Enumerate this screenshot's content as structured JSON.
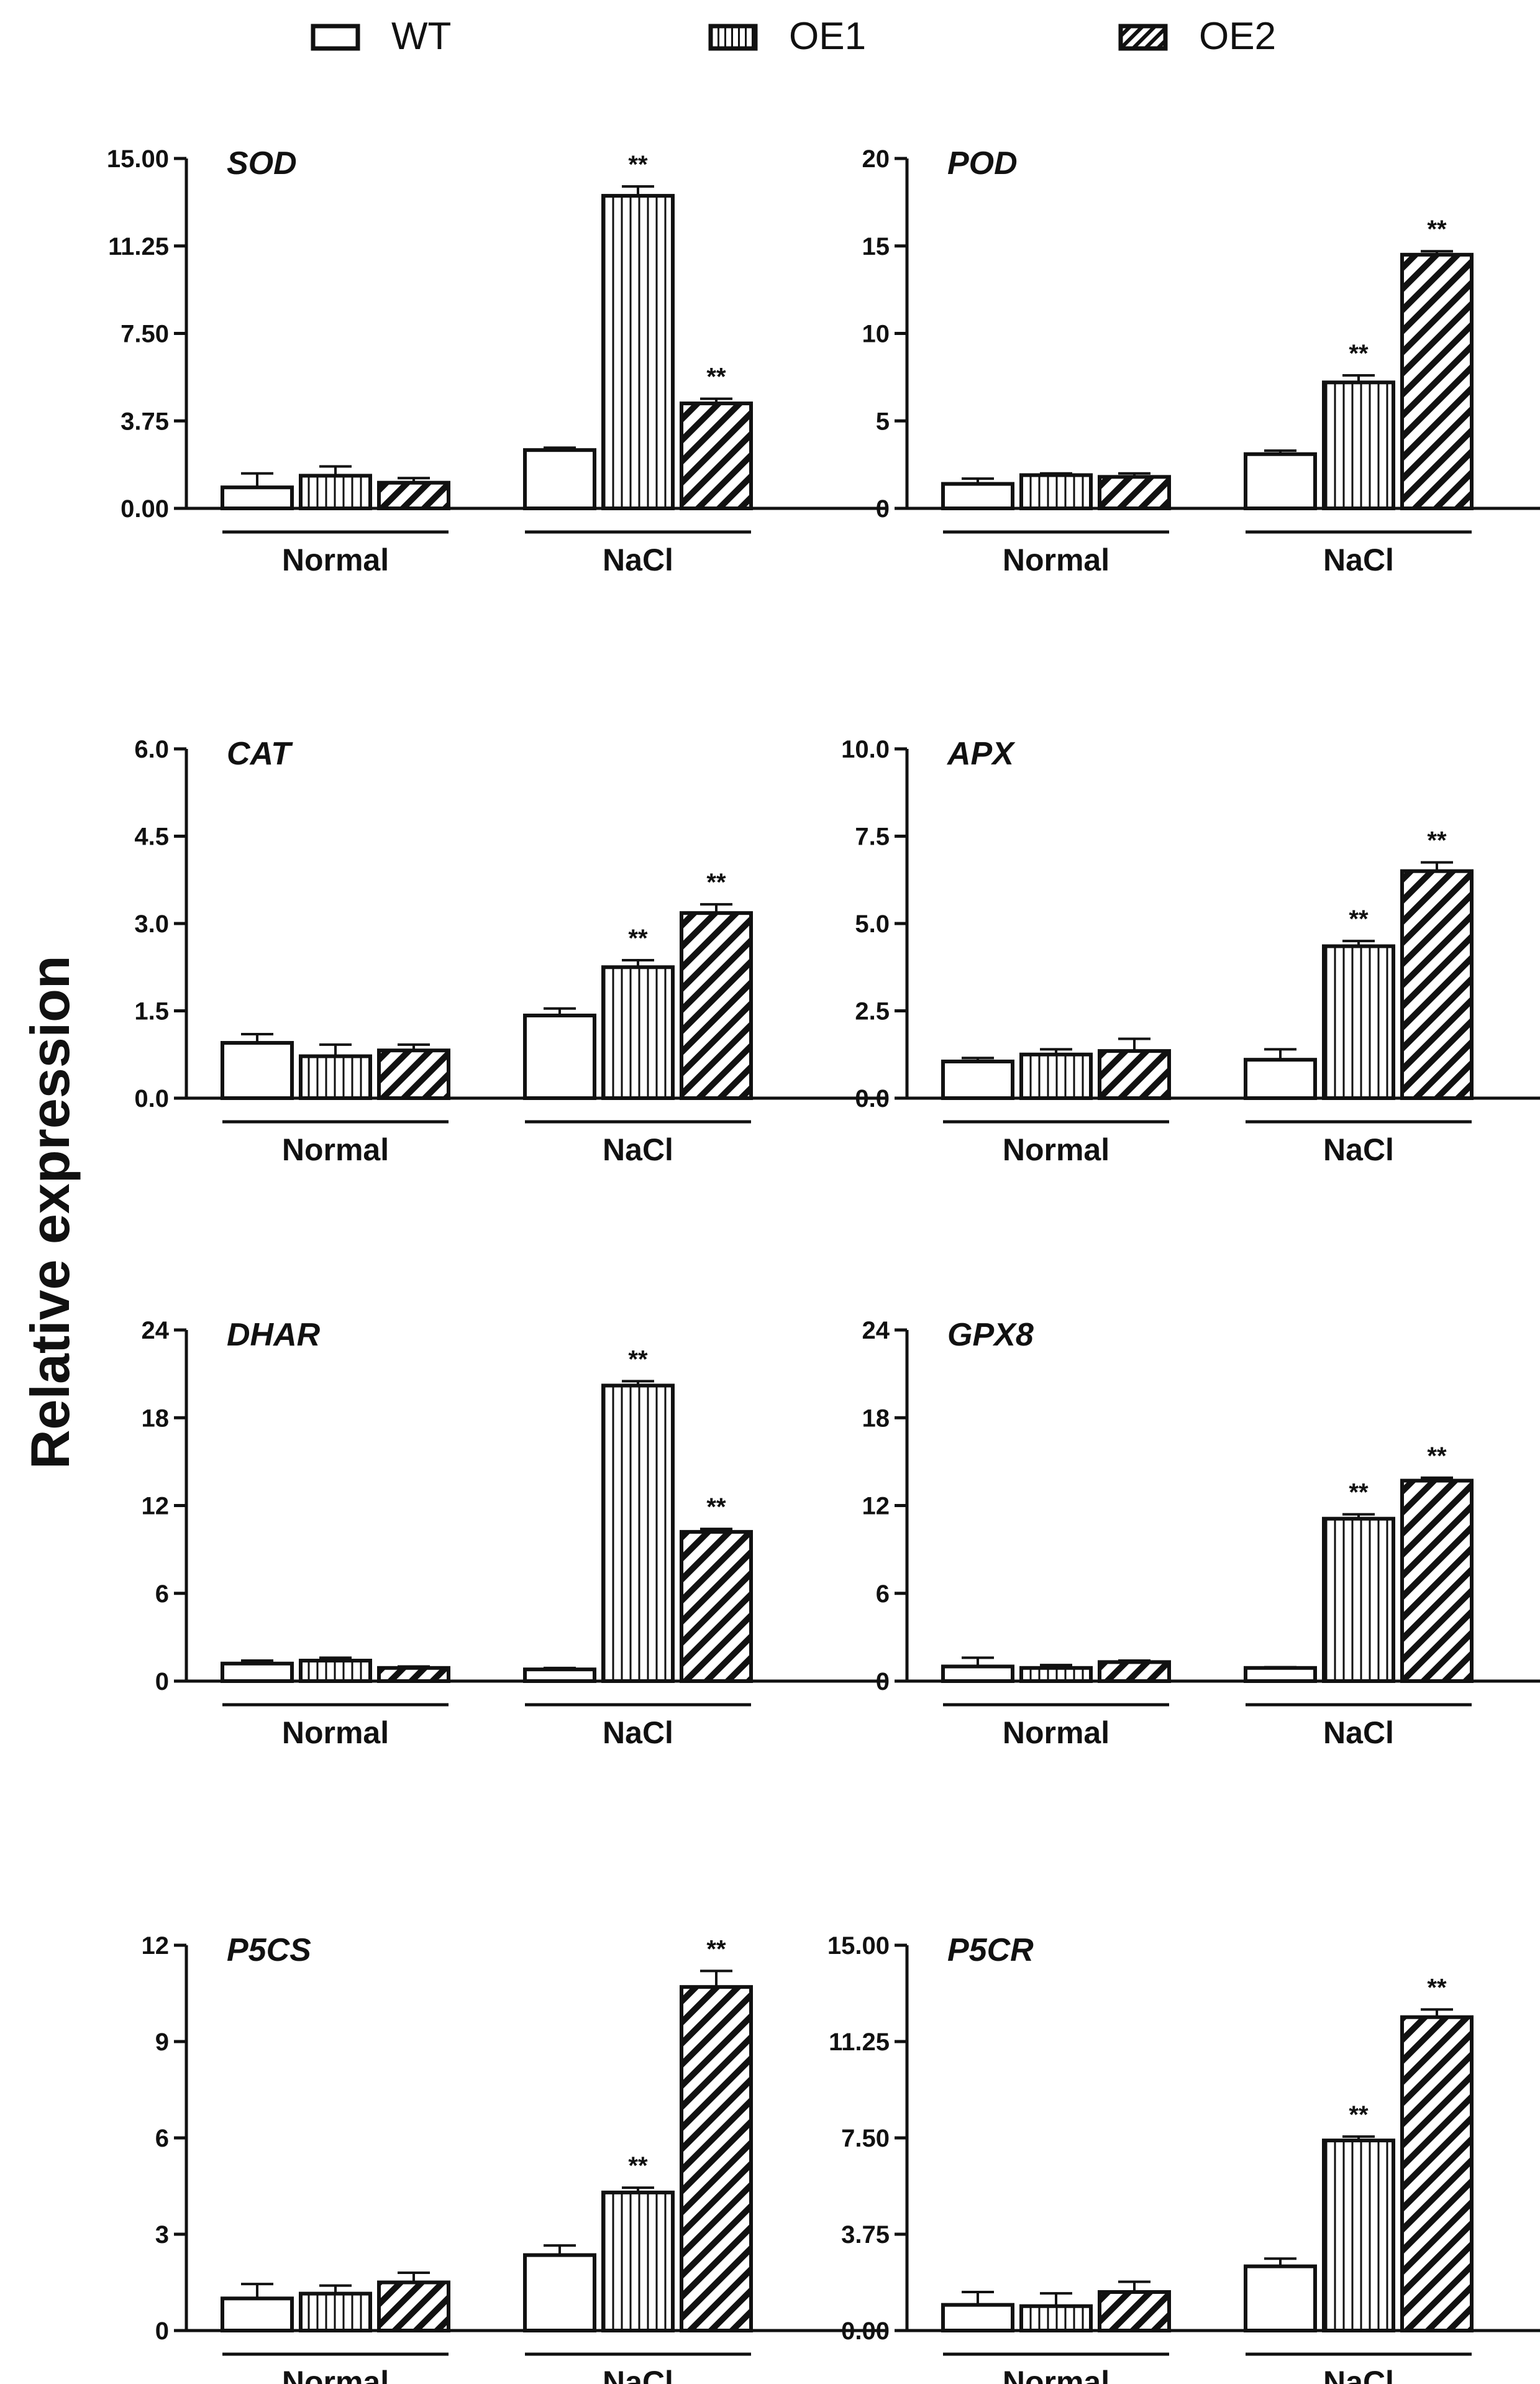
{
  "legend": [
    {
      "name": "WT",
      "pattern": "open"
    },
    {
      "name": "OE1",
      "pattern": "vertical"
    },
    {
      "name": "OE2",
      "pattern": "diagonal"
    }
  ],
  "ylabel": "Relative expression",
  "groups": [
    "Normal",
    "NaCl"
  ],
  "significance_mark": "**",
  "colors": {
    "stroke": "#111111",
    "fill": "#ffffff"
  },
  "chart_data": [
    {
      "type": "bar",
      "title": "SOD",
      "categories": [
        "Normal",
        "NaCl"
      ],
      "ylim": [
        0,
        15
      ],
      "yticks": [
        "0.00",
        "3.75",
        "7.50",
        "11.25",
        "15.00"
      ],
      "ytick_values": [
        0,
        3.75,
        7.5,
        11.25,
        15
      ],
      "series": [
        {
          "name": "WT",
          "values": [
            0.9,
            2.5
          ],
          "errors": [
            0.6,
            0.1
          ],
          "sig": [
            false,
            false
          ]
        },
        {
          "name": "OE1",
          "values": [
            1.4,
            13.4
          ],
          "errors": [
            0.4,
            0.4
          ],
          "sig": [
            false,
            true
          ]
        },
        {
          "name": "OE2",
          "values": [
            1.1,
            4.5
          ],
          "errors": [
            0.2,
            0.2
          ],
          "sig": [
            false,
            true
          ]
        }
      ]
    },
    {
      "type": "bar",
      "title": "POD",
      "categories": [
        "Normal",
        "NaCl"
      ],
      "ylim": [
        0,
        20
      ],
      "yticks": [
        "0",
        "5",
        "10",
        "15",
        "20"
      ],
      "ytick_values": [
        0,
        5,
        10,
        15,
        20
      ],
      "series": [
        {
          "name": "WT",
          "values": [
            1.4,
            3.1
          ],
          "errors": [
            0.3,
            0.2
          ],
          "sig": [
            false,
            false
          ]
        },
        {
          "name": "OE1",
          "values": [
            1.9,
            7.2
          ],
          "errors": [
            0.1,
            0.4
          ],
          "sig": [
            false,
            true
          ]
        },
        {
          "name": "OE2",
          "values": [
            1.8,
            14.5
          ],
          "errors": [
            0.2,
            0.2
          ],
          "sig": [
            false,
            true
          ]
        }
      ]
    },
    {
      "type": "bar",
      "title": "CAT",
      "categories": [
        "Normal",
        "NaCl"
      ],
      "ylim": [
        0,
        6
      ],
      "yticks": [
        "0.0",
        "1.5",
        "3.0",
        "4.5",
        "6.0"
      ],
      "ytick_values": [
        0,
        1.5,
        3,
        4.5,
        6
      ],
      "series": [
        {
          "name": "WT",
          "values": [
            0.95,
            1.42
          ],
          "errors": [
            0.15,
            0.12
          ],
          "sig": [
            false,
            false
          ]
        },
        {
          "name": "OE1",
          "values": [
            0.72,
            2.25
          ],
          "errors": [
            0.2,
            0.12
          ],
          "sig": [
            false,
            true
          ]
        },
        {
          "name": "OE2",
          "values": [
            0.82,
            3.18
          ],
          "errors": [
            0.1,
            0.15
          ],
          "sig": [
            false,
            true
          ]
        }
      ]
    },
    {
      "type": "bar",
      "title": "APX",
      "categories": [
        "Normal",
        "NaCl"
      ],
      "ylim": [
        0,
        10
      ],
      "yticks": [
        "0.0",
        "2.5",
        "5.0",
        "7.5",
        "10.0"
      ],
      "ytick_values": [
        0,
        2.5,
        5,
        7.5,
        10
      ],
      "series": [
        {
          "name": "WT",
          "values": [
            1.05,
            1.1
          ],
          "errors": [
            0.1,
            0.3
          ],
          "sig": [
            false,
            false
          ]
        },
        {
          "name": "OE1",
          "values": [
            1.25,
            4.35
          ],
          "errors": [
            0.15,
            0.15
          ],
          "sig": [
            false,
            true
          ]
        },
        {
          "name": "OE2",
          "values": [
            1.35,
            6.5
          ],
          "errors": [
            0.35,
            0.25
          ],
          "sig": [
            false,
            true
          ]
        }
      ]
    },
    {
      "type": "bar",
      "title": "DHAR",
      "categories": [
        "Normal",
        "NaCl"
      ],
      "ylim": [
        0,
        24
      ],
      "yticks": [
        "0",
        "6",
        "12",
        "18",
        "24"
      ],
      "ytick_values": [
        0,
        6,
        12,
        18,
        24
      ],
      "series": [
        {
          "name": "WT",
          "values": [
            1.2,
            0.8
          ],
          "errors": [
            0.2,
            0.1
          ],
          "sig": [
            false,
            false
          ]
        },
        {
          "name": "OE1",
          "values": [
            1.4,
            20.2
          ],
          "errors": [
            0.2,
            0.3
          ],
          "sig": [
            false,
            true
          ]
        },
        {
          "name": "OE2",
          "values": [
            0.9,
            10.2
          ],
          "errors": [
            0.1,
            0.2
          ],
          "sig": [
            false,
            true
          ]
        }
      ]
    },
    {
      "type": "bar",
      "title": "GPX8",
      "categories": [
        "Normal",
        "NaCl"
      ],
      "ylim": [
        0,
        24
      ],
      "yticks": [
        "0",
        "6",
        "12",
        "18",
        "24"
      ],
      "ytick_values": [
        0,
        6,
        12,
        18,
        24
      ],
      "series": [
        {
          "name": "WT",
          "values": [
            1.0,
            0.9
          ],
          "errors": [
            0.6,
            0.05
          ],
          "sig": [
            false,
            false
          ]
        },
        {
          "name": "OE1",
          "values": [
            0.9,
            11.1
          ],
          "errors": [
            0.2,
            0.3
          ],
          "sig": [
            false,
            true
          ]
        },
        {
          "name": "OE2",
          "values": [
            1.3,
            13.7
          ],
          "errors": [
            0.1,
            0.2
          ],
          "sig": [
            false,
            true
          ]
        }
      ]
    },
    {
      "type": "bar",
      "title": "P5CS",
      "categories": [
        "Normal",
        "NaCl"
      ],
      "ylim": [
        0,
        12
      ],
      "yticks": [
        "0",
        "3",
        "6",
        "9",
        "12"
      ],
      "ytick_values": [
        0,
        3,
        6,
        9,
        12
      ],
      "series": [
        {
          "name": "WT",
          "values": [
            1.0,
            2.35
          ],
          "errors": [
            0.45,
            0.3
          ],
          "sig": [
            false,
            false
          ]
        },
        {
          "name": "OE1",
          "values": [
            1.15,
            4.3
          ],
          "errors": [
            0.25,
            0.15
          ],
          "sig": [
            false,
            true
          ]
        },
        {
          "name": "OE2",
          "values": [
            1.5,
            10.7
          ],
          "errors": [
            0.3,
            0.5
          ],
          "sig": [
            false,
            true
          ]
        }
      ]
    },
    {
      "type": "bar",
      "title": "P5CR",
      "categories": [
        "Normal",
        "NaCl"
      ],
      "ylim": [
        0,
        15
      ],
      "yticks": [
        "0.00",
        "3.75",
        "7.50",
        "11.25",
        "15.00"
      ],
      "ytick_values": [
        0,
        3.75,
        7.5,
        11.25,
        15
      ],
      "series": [
        {
          "name": "WT",
          "values": [
            1.0,
            2.5
          ],
          "errors": [
            0.5,
            0.3
          ],
          "sig": [
            false,
            false
          ]
        },
        {
          "name": "OE1",
          "values": [
            0.95,
            7.4
          ],
          "errors": [
            0.5,
            0.15
          ],
          "sig": [
            false,
            true
          ]
        },
        {
          "name": "OE2",
          "values": [
            1.5,
            12.2
          ],
          "errors": [
            0.4,
            0.3
          ],
          "sig": [
            false,
            true
          ]
        }
      ]
    }
  ]
}
